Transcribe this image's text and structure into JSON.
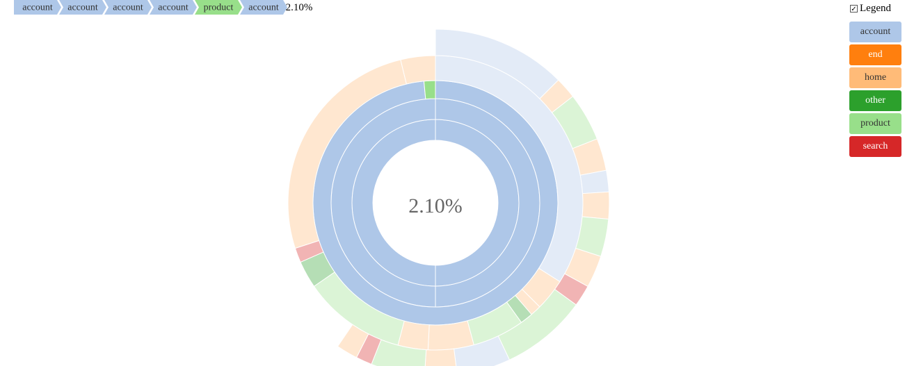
{
  "breadcrumb": {
    "steps": [
      {
        "label": "account",
        "color": "#aec7e8"
      },
      {
        "label": "account",
        "color": "#aec7e8"
      },
      {
        "label": "account",
        "color": "#aec7e8"
      },
      {
        "label": "account",
        "color": "#aec7e8"
      },
      {
        "label": "product",
        "color": "#98df8a"
      },
      {
        "label": "account",
        "color": "#aec7e8"
      }
    ],
    "percentage": "2.10%"
  },
  "legend_toggle": {
    "label": "Legend",
    "checked": true
  },
  "legend": [
    {
      "label": "account",
      "color": "#aec7e8"
    },
    {
      "label": "end",
      "color": "#ff7f0e"
    },
    {
      "label": "home",
      "color": "#ffbb78"
    },
    {
      "label": "other",
      "color": "#2ca02c"
    },
    {
      "label": "product",
      "color": "#98df8a"
    },
    {
      "label": "search",
      "color": "#d62728"
    }
  ],
  "center_label": "2.10%",
  "chart_data": {
    "type": "sunburst",
    "selected_path": [
      "account",
      "account",
      "account",
      "account",
      "product",
      "account"
    ],
    "selected_share": "2.10%",
    "rings": [
      {
        "depth": 1,
        "segments": [
          {
            "category": "account",
            "share": 1.0
          }
        ]
      },
      {
        "depth": 2,
        "segments": [
          {
            "category": "account",
            "share": 1.0
          }
        ]
      },
      {
        "depth": 3,
        "segments": [
          {
            "category": "account",
            "share": 0.985
          },
          {
            "category": "product",
            "share": 0.015
          }
        ]
      },
      {
        "depth": 4,
        "segments": [
          {
            "category": "account",
            "share": 0.34
          },
          {
            "category": "home",
            "share": 0.035
          },
          {
            "category": "home",
            "share": 0.012
          },
          {
            "category": "other",
            "share": 0.014
          },
          {
            "category": "product",
            "share": 0.057
          },
          {
            "category": "home",
            "share": 0.05
          },
          {
            "category": "home",
            "share": 0.033
          },
          {
            "category": "product",
            "share": 0.113
          },
          {
            "category": "other",
            "share": 0.03
          },
          {
            "category": "search",
            "share": 0.016
          },
          {
            "category": "home",
            "share": 0.262
          },
          {
            "category": "home",
            "share": 0.038
          }
        ]
      },
      {
        "depth": 5,
        "segments": [
          {
            "category": "account",
            "share": 0.125
          },
          {
            "category": "home",
            "share": 0.02
          },
          {
            "category": "product",
            "share": 0.045
          },
          {
            "category": "home",
            "share": 0.03
          },
          {
            "category": "account",
            "share": 0.02
          },
          {
            "category": "home",
            "share": 0.025
          },
          {
            "category": "product",
            "share": 0.035
          },
          {
            "category": "home",
            "share": 0.03
          },
          {
            "category": "search",
            "share": 0.02
          },
          {
            "category": "product",
            "share": 0.08
          },
          {
            "category": "account",
            "share": 0.05
          },
          {
            "category": "home",
            "share": 0.03
          },
          {
            "category": "product",
            "share": 0.05
          },
          {
            "category": "search",
            "share": 0.015
          },
          {
            "category": "home",
            "share": 0.02
          }
        ]
      }
    ]
  }
}
